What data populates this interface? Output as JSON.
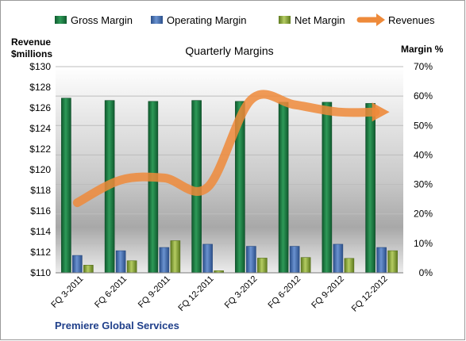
{
  "chart_data": {
    "type": "bar",
    "title": "Quarterly Margins",
    "company": "Premiere Global Services",
    "left_axis_label": [
      "Revenue",
      "$millions"
    ],
    "right_axis_label": "Margin %",
    "categories": [
      "FQ 3-2011",
      "FQ 6-2011",
      "FQ 9-2011",
      "FQ 12-2011",
      "FQ 3-2012",
      "FQ 6-2012",
      "FQ 9-2012",
      "FQ 12-2012"
    ],
    "left_ylim": [
      110,
      130
    ],
    "left_ticks": [
      "$110",
      "$112",
      "$114",
      "$116",
      "$118",
      "$120",
      "$122",
      "$124",
      "$126",
      "$128",
      "$130"
    ],
    "right_ylim": [
      0,
      70
    ],
    "right_ticks": [
      "0%",
      "10%",
      "20%",
      "30%",
      "40%",
      "50%",
      "60%",
      "70%"
    ],
    "legend": [
      "Gross Margin",
      "Operating Margin",
      "Net Margin",
      "Revenues"
    ],
    "series": [
      {
        "name": "Gross Margin",
        "axis": "right",
        "kind": "bar",
        "color": "#1e7a45",
        "values": [
          59.3,
          58.5,
          58.2,
          58.5,
          58.2,
          57.9,
          57.9,
          57.5
        ]
      },
      {
        "name": "Operating Margin",
        "axis": "right",
        "kind": "bar",
        "color": "#3f6bb0",
        "values": [
          5.9,
          7.5,
          8.6,
          9.7,
          9.0,
          9.0,
          9.7,
          8.6
        ]
      },
      {
        "name": "Net Margin",
        "axis": "right",
        "kind": "bar",
        "color": "#8aa83a",
        "values": [
          2.6,
          4.1,
          10.9,
          0.7,
          5.0,
          5.2,
          4.9,
          7.5
        ]
      },
      {
        "name": "Revenues",
        "axis": "left",
        "kind": "line",
        "color": "#ee8a3a",
        "values": [
          116.8,
          119.0,
          119.2,
          118.3,
          126.8,
          126.3,
          125.6,
          125.6
        ]
      }
    ],
    "grid": true,
    "legend_position": "top"
  }
}
